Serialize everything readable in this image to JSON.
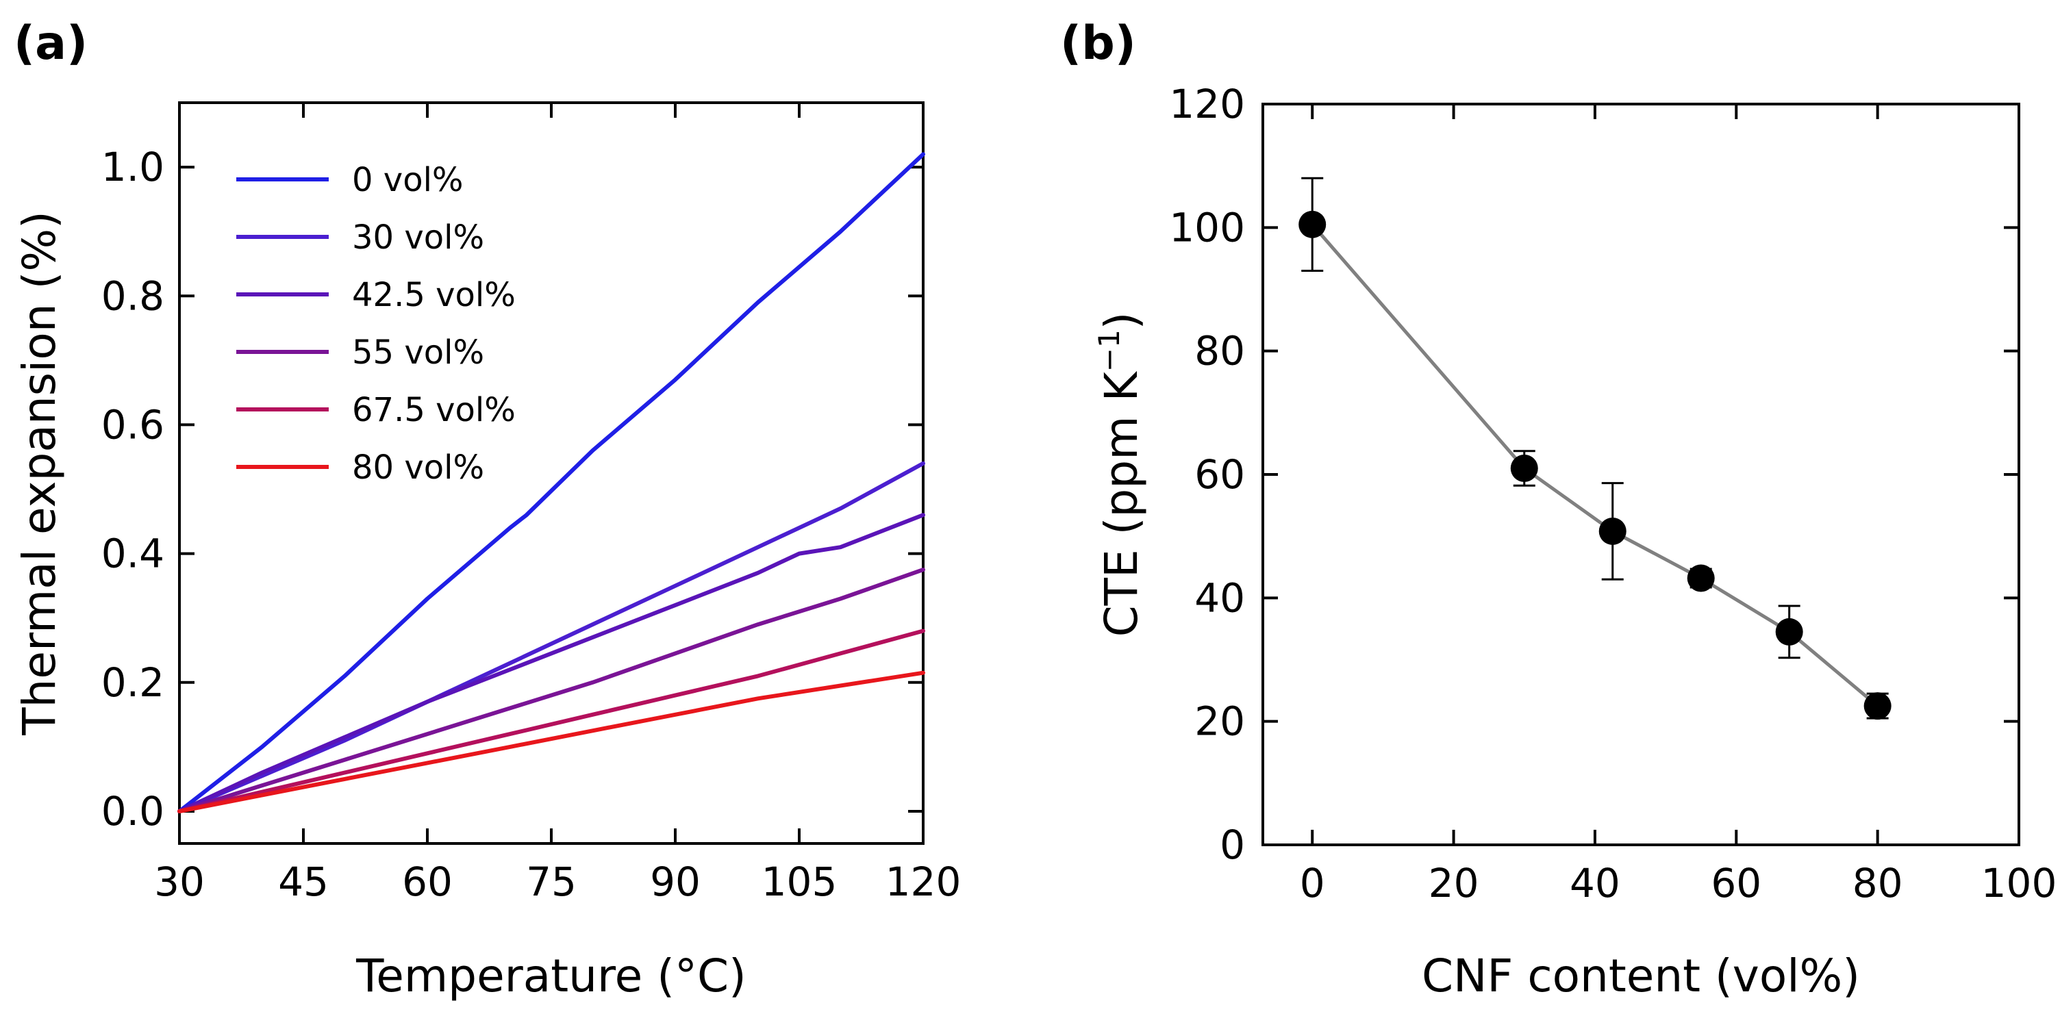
{
  "panel_labels": {
    "a": "(a)",
    "b": "(b)"
  },
  "chart_data": [
    {
      "type": "line",
      "xlabel": "Temperature (°C)",
      "ylabel": "Thermal expansion (%)",
      "xlim": [
        30,
        120
      ],
      "ylim": [
        -0.05,
        1.1
      ],
      "xticks": [
        30,
        45,
        60,
        75,
        90,
        105,
        120
      ],
      "xtick_labels": [
        "30",
        "45",
        "60",
        "75",
        "90",
        "105",
        "120"
      ],
      "yticks": [
        0.0,
        0.2,
        0.4,
        0.6,
        0.8,
        1.0
      ],
      "ytick_labels": [
        "0.0",
        "0.2",
        "0.4",
        "0.6",
        "0.8",
        "1.0"
      ],
      "legend_position": "top-left",
      "series": [
        {
          "name": "0 vol%",
          "color": "#1f1fe6",
          "x": [
            30,
            40,
            50,
            60,
            70,
            72,
            80,
            90,
            100,
            110,
            120
          ],
          "y": [
            0,
            0.1,
            0.21,
            0.33,
            0.44,
            0.46,
            0.56,
            0.67,
            0.79,
            0.9,
            1.02
          ]
        },
        {
          "name": "30 vol%",
          "color": "#4b1fd0",
          "x": [
            30,
            40,
            50,
            60,
            70,
            80,
            90,
            100,
            110,
            120
          ],
          "y": [
            0,
            0.055,
            0.11,
            0.17,
            0.23,
            0.29,
            0.35,
            0.41,
            0.47,
            0.54
          ]
        },
        {
          "name": "42.5 vol%",
          "color": "#5a14b8",
          "x": [
            30,
            40,
            50,
            60,
            70,
            80,
            90,
            100,
            105,
            110,
            120
          ],
          "y": [
            0,
            0.06,
            0.115,
            0.17,
            0.22,
            0.27,
            0.32,
            0.37,
            0.4,
            0.41,
            0.46
          ]
        },
        {
          "name": "55 vol%",
          "color": "#7a1496",
          "x": [
            30,
            40,
            50,
            60,
            70,
            80,
            90,
            100,
            110,
            120
          ],
          "y": [
            0,
            0.04,
            0.08,
            0.12,
            0.16,
            0.2,
            0.245,
            0.29,
            0.33,
            0.375
          ]
        },
        {
          "name": "67.5 vol%",
          "color": "#b4105c",
          "x": [
            30,
            40,
            50,
            60,
            70,
            80,
            90,
            100,
            110,
            120
          ],
          "y": [
            0,
            0.03,
            0.06,
            0.09,
            0.12,
            0.15,
            0.18,
            0.21,
            0.245,
            0.28
          ]
        },
        {
          "name": "80 vol%",
          "color": "#e8161c",
          "x": [
            30,
            40,
            50,
            60,
            70,
            80,
            90,
            100,
            110,
            120
          ],
          "y": [
            0,
            0.025,
            0.05,
            0.075,
            0.1,
            0.125,
            0.15,
            0.175,
            0.195,
            0.215
          ]
        }
      ]
    },
    {
      "type": "scatter",
      "xlabel": "CNF content (vol%)",
      "ylabel": "CTE (ppm K",
      "ylabel_sup": "−1",
      "ylabel_close": ")",
      "xlim": [
        -7,
        100
      ],
      "ylim": [
        0,
        120
      ],
      "xticks": [
        0,
        20,
        40,
        60,
        80,
        100
      ],
      "xtick_labels": [
        "0",
        "20",
        "40",
        "60",
        "80",
        "100"
      ],
      "yticks": [
        0,
        20,
        40,
        60,
        80,
        100,
        120
      ],
      "ytick_labels": [
        "0",
        "20",
        "40",
        "60",
        "80",
        "100",
        "120"
      ],
      "line_color": "#808080",
      "marker_color": "#000000",
      "x": [
        0,
        30,
        42.5,
        55,
        67.5,
        80
      ],
      "y": [
        100.5,
        61,
        50.8,
        43.2,
        34.5,
        22.5
      ],
      "err": [
        7.5,
        2.8,
        7.8,
        1.5,
        4.2,
        2
      ]
    }
  ]
}
